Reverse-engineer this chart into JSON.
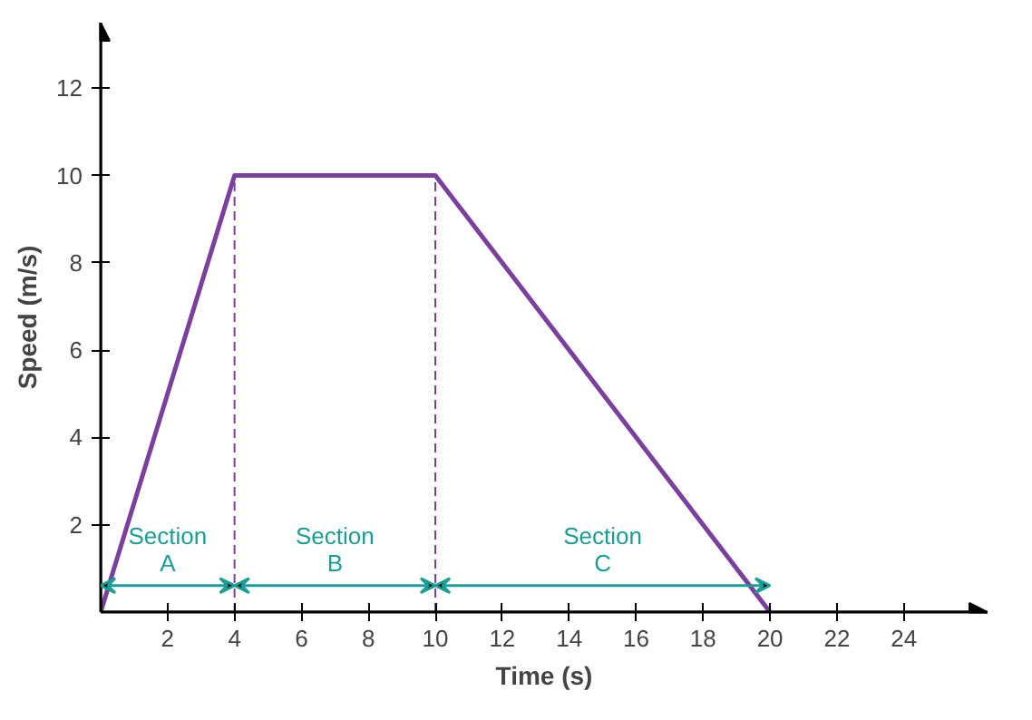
{
  "chart_data": {
    "type": "line",
    "xlabel": "Time (s)",
    "ylabel": "Speed (m/s)",
    "x": [
      0,
      4,
      10,
      20
    ],
    "series": [
      {
        "color": "#7b3f9e",
        "values": [
          0,
          10,
          10,
          0
        ]
      }
    ],
    "xlim": [
      0,
      26.5
    ],
    "ylim": [
      0,
      13.5
    ],
    "xticks": [
      2,
      4,
      6,
      8,
      10,
      12,
      14,
      16,
      18,
      20,
      22,
      24
    ],
    "yticks": [
      2,
      4,
      6,
      8,
      10,
      12
    ],
    "grid": false,
    "marker": "none",
    "line_style": "solid",
    "ref_lines": [
      {
        "axis": "x",
        "value": 4,
        "color": "#7b3f9e",
        "line_style": "dashed"
      },
      {
        "axis": "x",
        "value": 10,
        "color": "#7b3f9e",
        "line_style": "dashed"
      }
    ],
    "annotations": [
      "Section\nA",
      "Section\nB",
      "Section\nC"
    ]
  }
}
